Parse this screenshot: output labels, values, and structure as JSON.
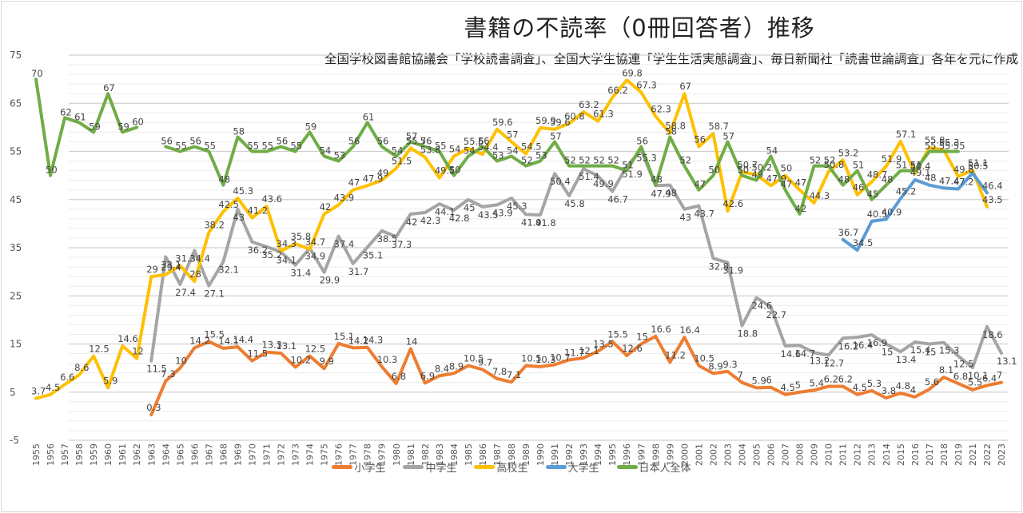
{
  "chart_data": {
    "type": "line",
    "title": "書籍の不読率（0冊回答者）推移",
    "subtitle": "全国学校図書館協議会「学校読書調査」、全国大学生協連「学生生活実態調査」、毎日新聞社「読書世論調査」各年を元に作成",
    "xlabel": "",
    "ylabel": "",
    "ylim": [
      -5,
      75
    ],
    "yticks": [
      75,
      65,
      55,
      45,
      35,
      25,
      15,
      5,
      -5
    ],
    "grid": true,
    "legend_position": "bottom",
    "categories": [
      "1955",
      "1956",
      "1957",
      "1958",
      "1959",
      "1960",
      "1961",
      "1962",
      "1963",
      "1964",
      "1965",
      "1966",
      "1967",
      "1968",
      "1969",
      "1970",
      "1971",
      "1972",
      "1973",
      "1974",
      "1975",
      "1976",
      "1977",
      "1978",
      "1979",
      "1980",
      "1981",
      "1982",
      "1983",
      "1984",
      "1985",
      "1986",
      "1987",
      "1988",
      "1989",
      "1990",
      "1991",
      "1992",
      "1993",
      "1994",
      "1995",
      "1996",
      "1997",
      "1998",
      "1999",
      "2000",
      "2001",
      "2002",
      "2003",
      "2004",
      "2005",
      "2006",
      "2007",
      "2008",
      "2009",
      "2010",
      "2011",
      "2012",
      "2013",
      "2014",
      "2015",
      "2016",
      "2017",
      "2018",
      "2019",
      "2021",
      "2022",
      "2023"
    ],
    "series": [
      {
        "name": "小学生",
        "color": "#ED7D31",
        "values": [
          null,
          null,
          null,
          null,
          null,
          null,
          null,
          null,
          0.3,
          7.3,
          10,
          14.2,
          15.5,
          14.1,
          14.4,
          11.5,
          13.3,
          13.1,
          10.2,
          12.5,
          9.9,
          15.1,
          14.2,
          14.3,
          10.3,
          6.8,
          14,
          6.9,
          8.4,
          8.9,
          10.5,
          9.7,
          7.8,
          7.1,
          10.5,
          10.3,
          10.7,
          11.7,
          12.1,
          13.5,
          15.5,
          12.6,
          15,
          16.6,
          11.2,
          16.4,
          10.5,
          8.9,
          9.3,
          7,
          5.9,
          6,
          4.5,
          5,
          5.4,
          6.2,
          6.2,
          4.5,
          5.3,
          3.8,
          4.8,
          4,
          5.6,
          8.1,
          6.8,
          5.5,
          6.4,
          7
        ]
      },
      {
        "name": "中学生",
        "color": "#A5A5A5",
        "values": [
          null,
          null,
          null,
          null,
          null,
          null,
          null,
          null,
          11.5,
          33.1,
          27.4,
          34.4,
          27.1,
          32.1,
          43,
          36.2,
          35.2,
          34.1,
          31.4,
          34.9,
          29.9,
          37.4,
          31.7,
          35.1,
          38.5,
          37.3,
          42,
          42.3,
          44.1,
          42.8,
          45,
          43.5,
          43.9,
          45.3,
          41.9,
          41.8,
          50.4,
          45.8,
          51.4,
          49.9,
          46.7,
          51.9,
          55.3,
          47.9,
          48,
          43,
          43.7,
          32.8,
          31.9,
          18.8,
          24.6,
          22.7,
          14.6,
          14.7,
          13.2,
          12.7,
          16.2,
          16.4,
          16.9,
          15,
          13.4,
          15.4,
          15,
          15.3,
          12.5,
          10.1,
          18.6,
          13.1
        ]
      },
      {
        "name": "高校生",
        "color": "#FFC000",
        "values": [
          3.7,
          4.5,
          6.6,
          8.6,
          12.5,
          5.9,
          14.6,
          12,
          29,
          29.4,
          31.3,
          28,
          38.2,
          42.5,
          45.3,
          41.2,
          43.6,
          34.3,
          35.8,
          34.7,
          42,
          43.9,
          47,
          47.9,
          49,
          51.5,
          55.7,
          53.8,
          49.5,
          54,
          55.6,
          54.4,
          59.6,
          57,
          54.5,
          59.9,
          59.6,
          60.8,
          63.2,
          61.3,
          66.2,
          69.8,
          67.3,
          62.3,
          58.8,
          67,
          56,
          58.7,
          42.6,
          50.7,
          50.2,
          47.9,
          50,
          47,
          44.3,
          50.8,
          53.2,
          46,
          48.7,
          51.9,
          57.1,
          50.4,
          55.8,
          55.3,
          49.8,
          51.1,
          43.5
        ]
      },
      {
        "name": "大学生",
        "color": "#5B9BD5",
        "values": [
          null,
          null,
          null,
          null,
          null,
          null,
          null,
          null,
          null,
          null,
          null,
          null,
          null,
          null,
          null,
          null,
          null,
          null,
          null,
          null,
          null,
          null,
          null,
          null,
          null,
          null,
          null,
          null,
          null,
          null,
          null,
          null,
          null,
          null,
          null,
          null,
          null,
          null,
          null,
          null,
          null,
          null,
          null,
          null,
          null,
          null,
          null,
          null,
          null,
          null,
          null,
          null,
          null,
          null,
          null,
          null,
          36.7,
          34.5,
          40.5,
          40.9,
          45.2,
          49.1,
          48,
          47.4,
          47.2,
          50.5,
          46.4,
          null
        ]
      },
      {
        "name": "日本人全体",
        "color": "#70AD47",
        "values": [
          70,
          50,
          62,
          61,
          59,
          67,
          59,
          60,
          null,
          56,
          55,
          56,
          55,
          48,
          58,
          55,
          55,
          56,
          55,
          59,
          54,
          53,
          56,
          61,
          56,
          54,
          57,
          56,
          55,
          50,
          54,
          56,
          53,
          54,
          52,
          53,
          57,
          52,
          52,
          52,
          52,
          51,
          56,
          48,
          58,
          52,
          47,
          50,
          57,
          50,
          49,
          54,
          47,
          42,
          52,
          52,
          48,
          51,
          45,
          48,
          51,
          51,
          55,
          55,
          55,
          null,
          null,
          null
        ]
      }
    ]
  }
}
